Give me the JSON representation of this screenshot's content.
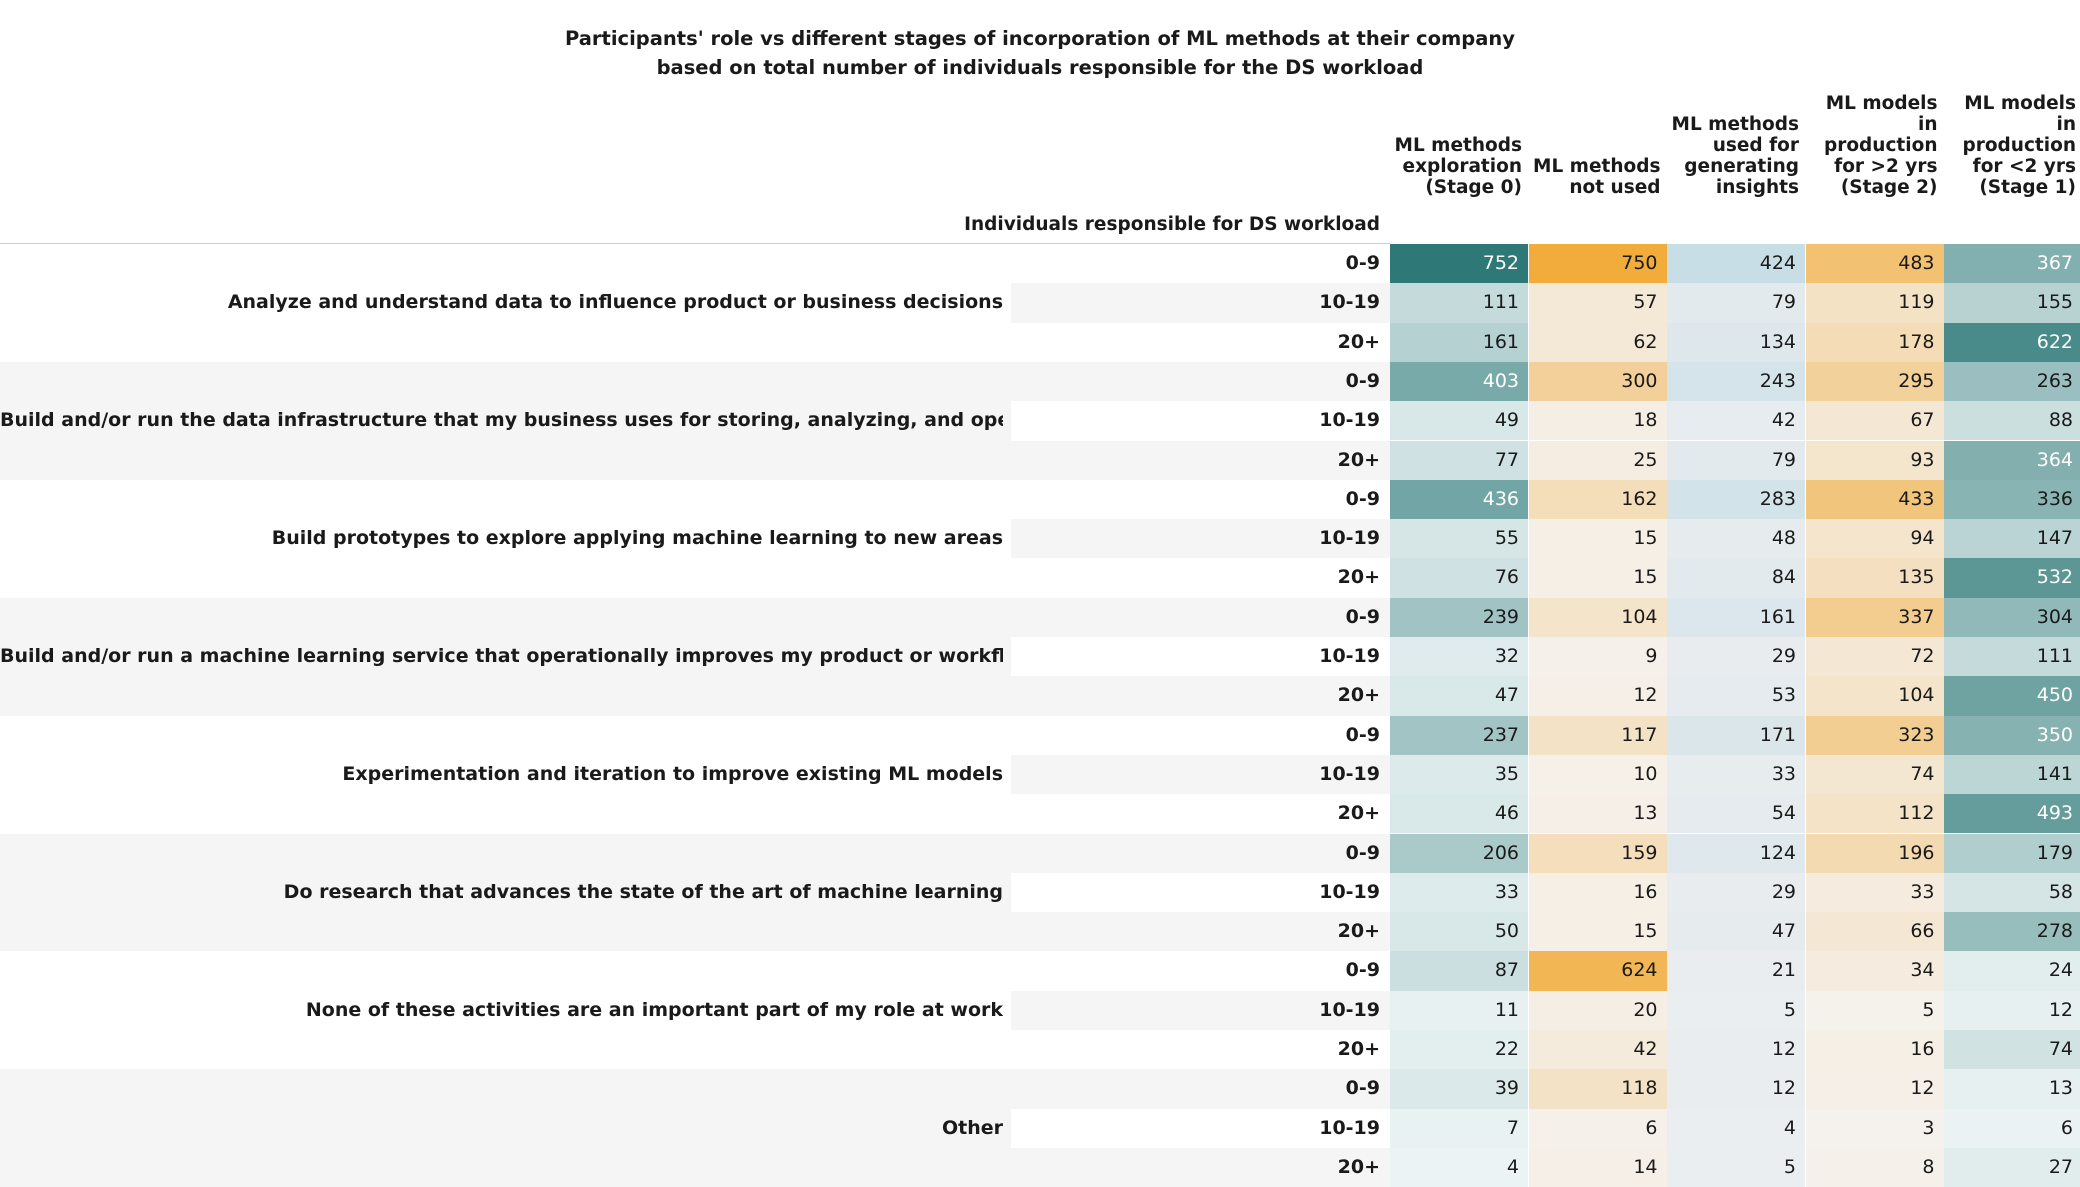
{
  "chart_data": {
    "type": "heatmap",
    "title": "Participants' role vs different stages of incorporation of ML methods at their company",
    "subtitle": "based on total number of individuals responsible for the DS workload",
    "row_header_title": "Individuals responsible for DS workload",
    "columns": [
      {
        "label": "ML methods exploration (Stage 0)",
        "lines": [
          "ML methods",
          "exploration",
          "(Stage 0)"
        ],
        "scheme": "teal"
      },
      {
        "label": "ML methods not used",
        "lines": [
          "ML methods",
          "not used"
        ],
        "scheme": "orange"
      },
      {
        "label": "ML methods used for generating insights",
        "lines": [
          "ML methods",
          "used for",
          "generating",
          "insights"
        ],
        "scheme": "blue"
      },
      {
        "label": "ML models in production for >2 yrs (Stage 2)",
        "lines": [
          "ML models in",
          "production",
          "for >2 yrs",
          "(Stage 2)"
        ],
        "scheme": "orange"
      },
      {
        "label": "ML models in production for <2 yrs (Stage 1)",
        "lines": [
          "ML models in",
          "production",
          "for <2 yrs",
          "(Stage 1)"
        ],
        "scheme": "teal"
      }
    ],
    "bins": [
      "0-9",
      "10-19",
      "20+"
    ],
    "groups": [
      {
        "role": "Analyze and understand data to influence product or business decisions",
        "values": [
          [
            752,
            750,
            424,
            483,
            367
          ],
          [
            111,
            57,
            79,
            119,
            155
          ],
          [
            161,
            62,
            134,
            178,
            622
          ]
        ]
      },
      {
        "role": "Build and/or run the data infrastructure that my business uses for storing, analyzing, and operationalizing data",
        "values": [
          [
            403,
            300,
            243,
            295,
            263
          ],
          [
            49,
            18,
            42,
            67,
            88
          ],
          [
            77,
            25,
            79,
            93,
            364
          ]
        ]
      },
      {
        "role": "Build prototypes to explore applying machine learning to new areas",
        "values": [
          [
            436,
            162,
            283,
            433,
            336
          ],
          [
            55,
            15,
            48,
            94,
            147
          ],
          [
            76,
            15,
            84,
            135,
            532
          ]
        ]
      },
      {
        "role": "Build and/or run a machine learning service that operationally improves my product or workflows",
        "values": [
          [
            239,
            104,
            161,
            337,
            304
          ],
          [
            32,
            9,
            29,
            72,
            111
          ],
          [
            47,
            12,
            53,
            104,
            450
          ]
        ]
      },
      {
        "role": "Experimentation and iteration to improve existing ML models",
        "values": [
          [
            237,
            117,
            171,
            323,
            350
          ],
          [
            35,
            10,
            33,
            74,
            141
          ],
          [
            46,
            13,
            54,
            112,
            493
          ]
        ]
      },
      {
        "role": "Do research that advances the state of the art of machine learning",
        "values": [
          [
            206,
            159,
            124,
            196,
            179
          ],
          [
            33,
            16,
            29,
            33,
            58
          ],
          [
            50,
            15,
            47,
            66,
            278
          ]
        ]
      },
      {
        "role": "None of these activities are an important part of my role at work",
        "values": [
          [
            87,
            624,
            21,
            34,
            24
          ],
          [
            11,
            20,
            5,
            5,
            12
          ],
          [
            22,
            42,
            12,
            16,
            74
          ]
        ]
      },
      {
        "role": "Other",
        "values": [
          [
            39,
            118,
            12,
            12,
            13
          ],
          [
            7,
            6,
            4,
            3,
            6
          ],
          [
            4,
            14,
            5,
            8,
            27
          ]
        ]
      }
    ],
    "color_schemes": {
      "teal": {
        "low": "#eef5f6",
        "high": "#2e7978"
      },
      "orange": {
        "low": "#f5f2ee",
        "high": "#f1ac3c"
      },
      "blue": {
        "low": "#eceef0",
        "high": "#b3d5e1"
      }
    },
    "value_range": [
      0,
      752
    ]
  }
}
